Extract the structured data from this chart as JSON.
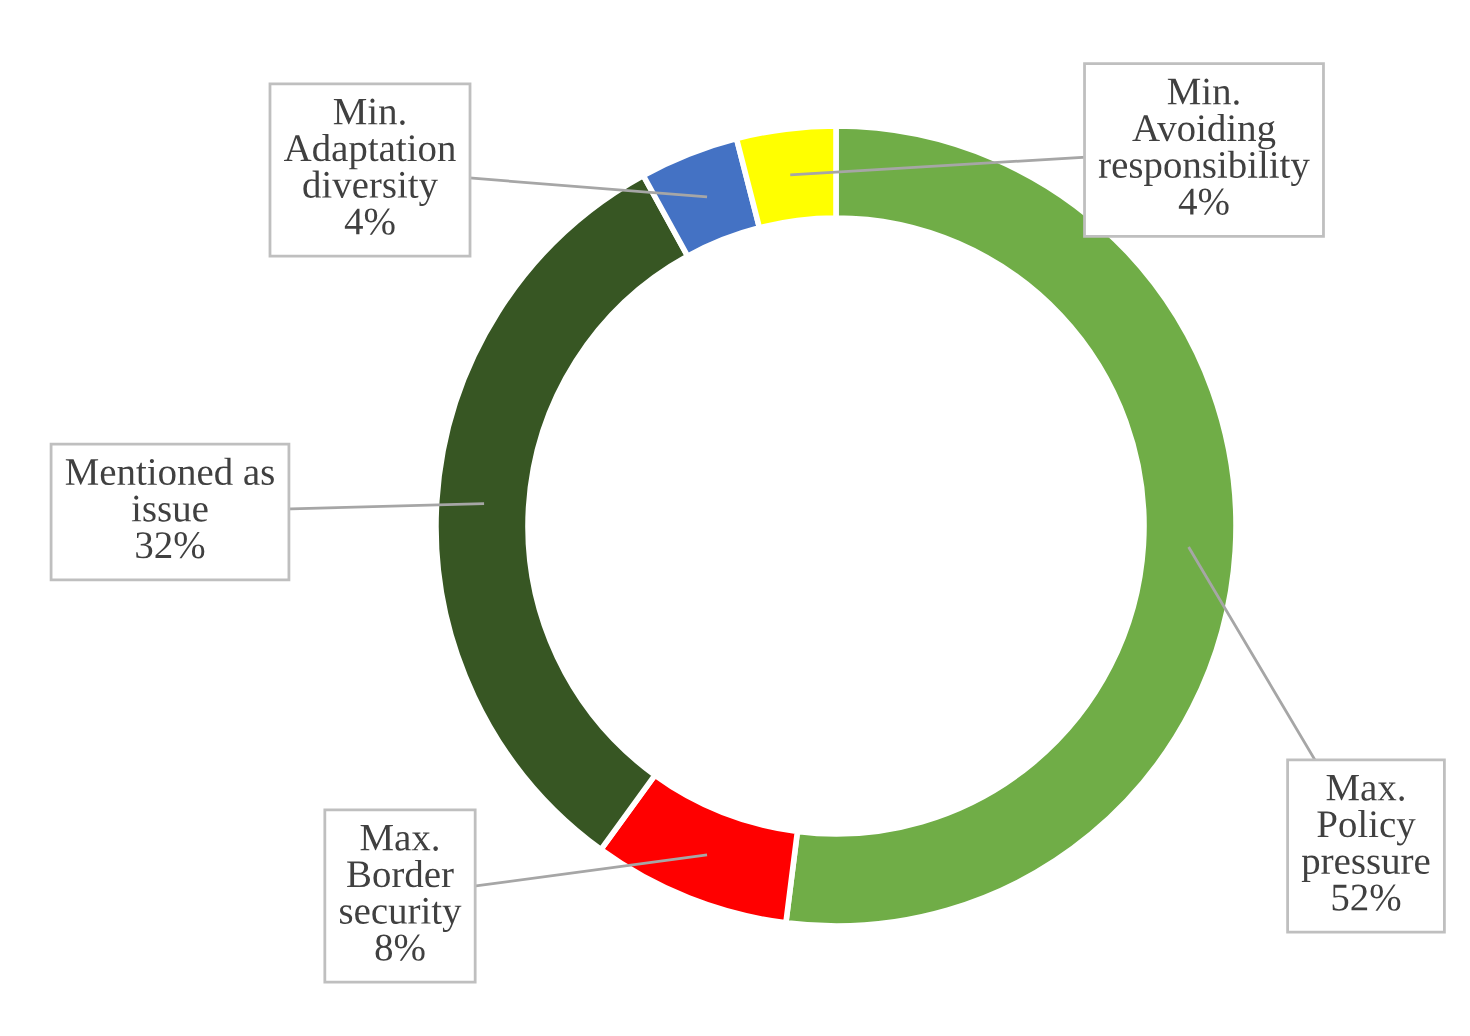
{
  "chart_data": {
    "type": "donut",
    "categories": [
      "Max.\nPolicy\npressure",
      "Max.\nBorder\nsecurity",
      "Mentioned as\nissue",
      "Min.\nAdaptation\ndiversity",
      "Min.\nAvoiding\nresponsibility"
    ],
    "values": [
      52,
      8,
      32,
      4,
      4
    ],
    "value_labels": [
      "52%",
      "8%",
      "32%",
      "4%",
      "4%"
    ],
    "colors": [
      "#70ad47",
      "#ff0000",
      "#375623",
      "#4472c4",
      "#ffff00"
    ],
    "legend": false
  }
}
